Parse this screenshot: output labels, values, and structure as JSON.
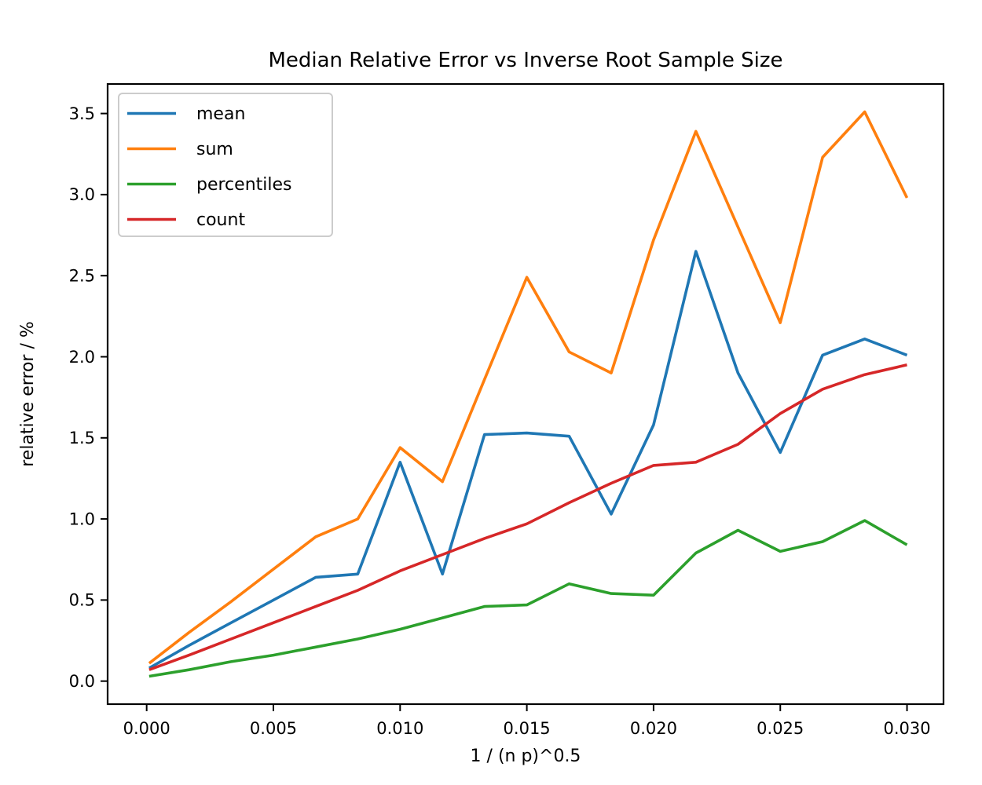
{
  "figure": {
    "background": "#ffffff",
    "spine_color": "#000000",
    "legend_border_color": "#cccccc",
    "legend_background": "#ffffff"
  },
  "chart_data": {
    "type": "line",
    "title": "Median Relative Error vs Inverse Root Sample Size",
    "xlabel": "1 / (n p)^0.5",
    "ylabel": "relative error / %",
    "legend_position": "upper left",
    "grid": false,
    "xlim": [
      -0.00154,
      0.03144
    ],
    "ylim": [
      -0.142,
      3.682
    ],
    "x_tick_values": [
      0.0,
      0.005,
      0.01,
      0.015,
      0.02,
      0.025,
      0.03
    ],
    "x_tick_labels": [
      "0.000",
      "0.005",
      "0.010",
      "0.015",
      "0.020",
      "0.025",
      "0.030"
    ],
    "y_tick_values": [
      0.0,
      0.5,
      1.0,
      1.5,
      2.0,
      2.5,
      3.0,
      3.5
    ],
    "y_tick_labels": [
      "0.0",
      "0.5",
      "1.0",
      "1.5",
      "2.0",
      "2.5",
      "3.0",
      "3.5"
    ],
    "x": [
      0.0001,
      0.00167,
      0.00333,
      0.005,
      0.00667,
      0.00833,
      0.01,
      0.01167,
      0.01333,
      0.015,
      0.01667,
      0.01833,
      0.02,
      0.02167,
      0.02333,
      0.025,
      0.02667,
      0.02833,
      0.03
    ],
    "series": [
      {
        "name": "mean",
        "color": "#1f77b4",
        "values": [
          0.08,
          0.22,
          0.36,
          0.5,
          0.64,
          0.66,
          1.35,
          0.66,
          1.52,
          1.53,
          1.51,
          1.03,
          1.58,
          2.65,
          1.9,
          1.41,
          2.01,
          2.11,
          2.01
        ]
      },
      {
        "name": "sum",
        "color": "#ff7f0e",
        "values": [
          0.11,
          0.3,
          0.49,
          0.69,
          0.89,
          1.0,
          1.44,
          1.23,
          1.86,
          2.49,
          2.03,
          1.9,
          2.72,
          3.39,
          2.8,
          2.21,
          3.23,
          3.51,
          2.98
        ]
      },
      {
        "name": "percentiles",
        "color": "#2ca02c",
        "values": [
          0.03,
          0.07,
          0.12,
          0.16,
          0.21,
          0.26,
          0.32,
          0.39,
          0.46,
          0.47,
          0.6,
          0.54,
          0.53,
          0.79,
          0.93,
          0.8,
          0.86,
          0.99,
          0.84
        ]
      },
      {
        "name": "count",
        "color": "#d62728",
        "values": [
          0.07,
          0.16,
          0.26,
          0.36,
          0.46,
          0.56,
          0.68,
          0.78,
          0.88,
          0.97,
          1.1,
          1.22,
          1.33,
          1.35,
          1.46,
          1.65,
          1.8,
          1.89,
          1.95
        ]
      }
    ]
  }
}
